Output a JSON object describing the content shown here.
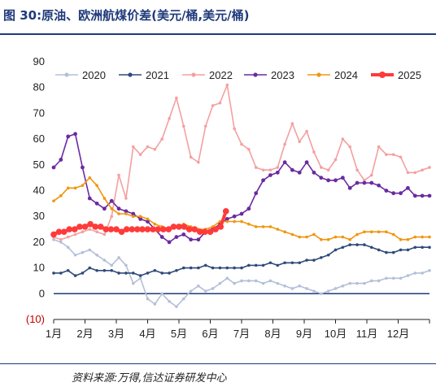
{
  "header": {
    "title": "图 30:原油、欧洲航煤价差(美元/桶,美元/桶)"
  },
  "footer": {
    "source": "资料来源:万得,信达证券研发中心"
  },
  "colors": {
    "title": "#1f3a7a",
    "s2020": "#b4c0d8",
    "s2021": "#2e4a7a",
    "s2022": "#f4a0a0",
    "s2023": "#6a2aa0",
    "s2024": "#f0960f",
    "s2025": "#ff3a3a",
    "zero_line": "#1f3a7a",
    "negative_label": "#c00000"
  },
  "chart_data": {
    "type": "line",
    "title": "",
    "xlabel": "",
    "ylabel": "",
    "ylim": [
      -10,
      90
    ],
    "yticks": [
      -10,
      0,
      10,
      20,
      30,
      40,
      50,
      60,
      70,
      80,
      90
    ],
    "ytick_labels": [
      "(10)",
      "0",
      "10",
      "20",
      "30",
      "40",
      "50",
      "60",
      "70",
      "80",
      "90"
    ],
    "xlim": [
      1,
      13
    ],
    "x_ticks": [
      1,
      2,
      3,
      4,
      5,
      6,
      7,
      8,
      9,
      10,
      11,
      12
    ],
    "x_tick_labels": [
      "1月",
      "2月",
      "3月",
      "4月",
      "5月",
      "6月",
      "7月",
      "8月",
      "9月",
      "10月",
      "11月",
      "12月"
    ],
    "grid": false,
    "legend": "top",
    "series": [
      {
        "name": "2020",
        "color": "#b4c0d8",
        "marker": "circle-small",
        "x": [
          1.0,
          1.23,
          1.46,
          1.69,
          1.92,
          2.15,
          2.38,
          2.62,
          2.85,
          3.08,
          3.31,
          3.54,
          3.77,
          4.0,
          4.23,
          4.46,
          4.69,
          4.92,
          5.15,
          5.38,
          5.62,
          5.85,
          6.08,
          6.31,
          6.54,
          6.77,
          7.0,
          7.23,
          7.46,
          7.69,
          7.92,
          8.15,
          8.38,
          8.62,
          8.85,
          9.08,
          9.31,
          9.54,
          9.77,
          10.0,
          10.23,
          10.46,
          10.69,
          10.92,
          11.15,
          11.38,
          11.62,
          11.85,
          12.08,
          12.31,
          12.54,
          12.77,
          13.0
        ],
        "y": [
          21,
          20,
          18,
          15,
          16,
          17,
          15,
          13,
          11,
          14,
          11,
          4,
          6,
          -2,
          -4,
          0,
          -3,
          -5,
          -2,
          1,
          3,
          1,
          2,
          4,
          6,
          4,
          5,
          5,
          5,
          4,
          5,
          4,
          3,
          2,
          3,
          2,
          1,
          0,
          1,
          2,
          3,
          4,
          4,
          4,
          5,
          5,
          6,
          6,
          6,
          7,
          8,
          8,
          9
        ]
      },
      {
        "name": "2021",
        "color": "#2e4a7a",
        "marker": "circle-small",
        "x": [
          1.0,
          1.23,
          1.46,
          1.69,
          1.92,
          2.15,
          2.38,
          2.62,
          2.85,
          3.08,
          3.31,
          3.54,
          3.77,
          4.0,
          4.23,
          4.46,
          4.69,
          4.92,
          5.15,
          5.38,
          5.62,
          5.85,
          6.08,
          6.31,
          6.54,
          6.77,
          7.0,
          7.23,
          7.46,
          7.69,
          7.92,
          8.15,
          8.38,
          8.62,
          8.85,
          9.08,
          9.31,
          9.54,
          9.77,
          10.0,
          10.23,
          10.46,
          10.69,
          10.92,
          11.15,
          11.38,
          11.62,
          11.85,
          12.08,
          12.31,
          12.54,
          12.77,
          13.0
        ],
        "y": [
          8,
          8,
          9,
          7,
          8,
          10,
          9,
          9,
          9,
          8,
          8,
          8,
          7,
          8,
          9,
          8,
          8,
          9,
          10,
          10,
          10,
          11,
          10,
          10,
          10,
          10,
          10,
          11,
          11,
          11,
          12,
          11,
          12,
          12,
          12,
          13,
          13,
          14,
          15,
          17,
          18,
          19,
          19,
          19,
          18,
          17,
          16,
          16,
          17,
          17,
          18,
          18,
          18
        ],
        "marker_every": 1
      },
      {
        "name": "2022",
        "color": "#f4a0a0",
        "marker": "circle-small",
        "x": [
          1.0,
          1.23,
          1.46,
          1.69,
          1.92,
          2.15,
          2.38,
          2.62,
          2.85,
          3.08,
          3.31,
          3.54,
          3.77,
          4.0,
          4.23,
          4.46,
          4.69,
          4.92,
          5.15,
          5.38,
          5.62,
          5.85,
          6.08,
          6.31,
          6.54,
          6.77,
          7.0,
          7.23,
          7.46,
          7.69,
          7.92,
          8.15,
          8.38,
          8.62,
          8.85,
          9.08,
          9.31,
          9.54,
          9.77,
          10.0,
          10.23,
          10.46,
          10.69,
          10.92,
          11.15,
          11.38,
          11.62,
          11.85,
          12.08,
          12.31,
          12.54,
          12.77,
          13.0
        ],
        "y": [
          22,
          21,
          22,
          23,
          24,
          25,
          24,
          23,
          30,
          46,
          37,
          57,
          54,
          57,
          56,
          60,
          68,
          76,
          65,
          53,
          51,
          65,
          73,
          74,
          81,
          64,
          58,
          56,
          49,
          48,
          48,
          49,
          58,
          66,
          59,
          63,
          55,
          49,
          48,
          52,
          60,
          57,
          48,
          44,
          46,
          57,
          54,
          54,
          53,
          47,
          47,
          48,
          49
        ]
      },
      {
        "name": "2023",
        "color": "#6a2aa0",
        "marker": "circle",
        "x": [
          1.0,
          1.23,
          1.46,
          1.69,
          1.92,
          2.15,
          2.38,
          2.62,
          2.85,
          3.08,
          3.31,
          3.54,
          3.77,
          4.0,
          4.23,
          4.46,
          4.69,
          4.92,
          5.15,
          5.38,
          5.62,
          5.85,
          6.08,
          6.31,
          6.54,
          6.77,
          7.0,
          7.23,
          7.46,
          7.69,
          7.92,
          8.15,
          8.38,
          8.62,
          8.85,
          9.08,
          9.31,
          9.54,
          9.77,
          10.0,
          10.23,
          10.46,
          10.69,
          10.92,
          11.15,
          11.38,
          11.62,
          11.85,
          12.08,
          12.31,
          12.54,
          12.77,
          13.0
        ],
        "y": [
          49,
          52,
          61,
          62,
          49,
          37,
          35,
          33,
          36,
          33,
          32,
          31,
          29,
          28,
          25,
          22,
          20,
          22,
          23,
          21,
          21,
          24,
          25,
          27,
          29,
          30,
          31,
          33,
          39,
          44,
          46,
          47,
          51,
          48,
          47,
          51,
          47,
          45,
          44,
          44,
          45,
          41,
          43,
          43,
          43,
          42,
          40,
          39,
          39,
          41,
          38,
          38,
          38
        ]
      },
      {
        "name": "2024",
        "color": "#f0960f",
        "marker": "circle-small",
        "x": [
          1.0,
          1.23,
          1.46,
          1.69,
          1.92,
          2.15,
          2.38,
          2.62,
          2.85,
          3.08,
          3.31,
          3.54,
          3.77,
          4.0,
          4.23,
          4.46,
          4.69,
          4.92,
          5.15,
          5.38,
          5.62,
          5.85,
          6.08,
          6.31,
          6.54,
          6.77,
          7.0,
          7.23,
          7.46,
          7.69,
          7.92,
          8.15,
          8.38,
          8.62,
          8.85,
          9.08,
          9.31,
          9.54,
          9.77,
          10.0,
          10.23,
          10.46,
          10.69,
          10.92,
          11.15,
          11.38,
          11.62,
          11.85,
          12.08,
          12.31,
          12.54,
          12.77,
          13.0
        ],
        "y": [
          36,
          38,
          41,
          41,
          42,
          45,
          42,
          37,
          33,
          31,
          31,
          30,
          30,
          29,
          27,
          26,
          25,
          26,
          27,
          26,
          25,
          25,
          26,
          28,
          28,
          28,
          28,
          27,
          26,
          26,
          26,
          25,
          24,
          23,
          22,
          22,
          23,
          21,
          21,
          22,
          22,
          21,
          23,
          24,
          24,
          24,
          24,
          23,
          21,
          21,
          22,
          22,
          22
        ]
      },
      {
        "name": "2025",
        "color": "#ff3a3a",
        "marker": "circle",
        "x": [
          1.0,
          1.17,
          1.33,
          1.5,
          1.67,
          1.83,
          2.0,
          2.17,
          2.33,
          2.5,
          2.67,
          2.83,
          3.0,
          3.17,
          3.33,
          3.5,
          3.67,
          3.83,
          4.0,
          4.17,
          4.33,
          4.5,
          4.67,
          4.83,
          5.0,
          5.17,
          5.33,
          5.5,
          5.67,
          5.83,
          6.0,
          6.17,
          6.33,
          6.5
        ],
        "y": [
          23,
          24,
          24,
          25,
          25,
          26,
          26,
          27,
          26,
          26,
          25,
          25,
          25,
          24,
          25,
          25,
          25,
          25,
          25,
          25,
          25,
          25,
          25,
          26,
          26,
          26,
          25,
          25,
          24,
          24,
          24,
          25,
          26,
          32
        ]
      }
    ]
  }
}
